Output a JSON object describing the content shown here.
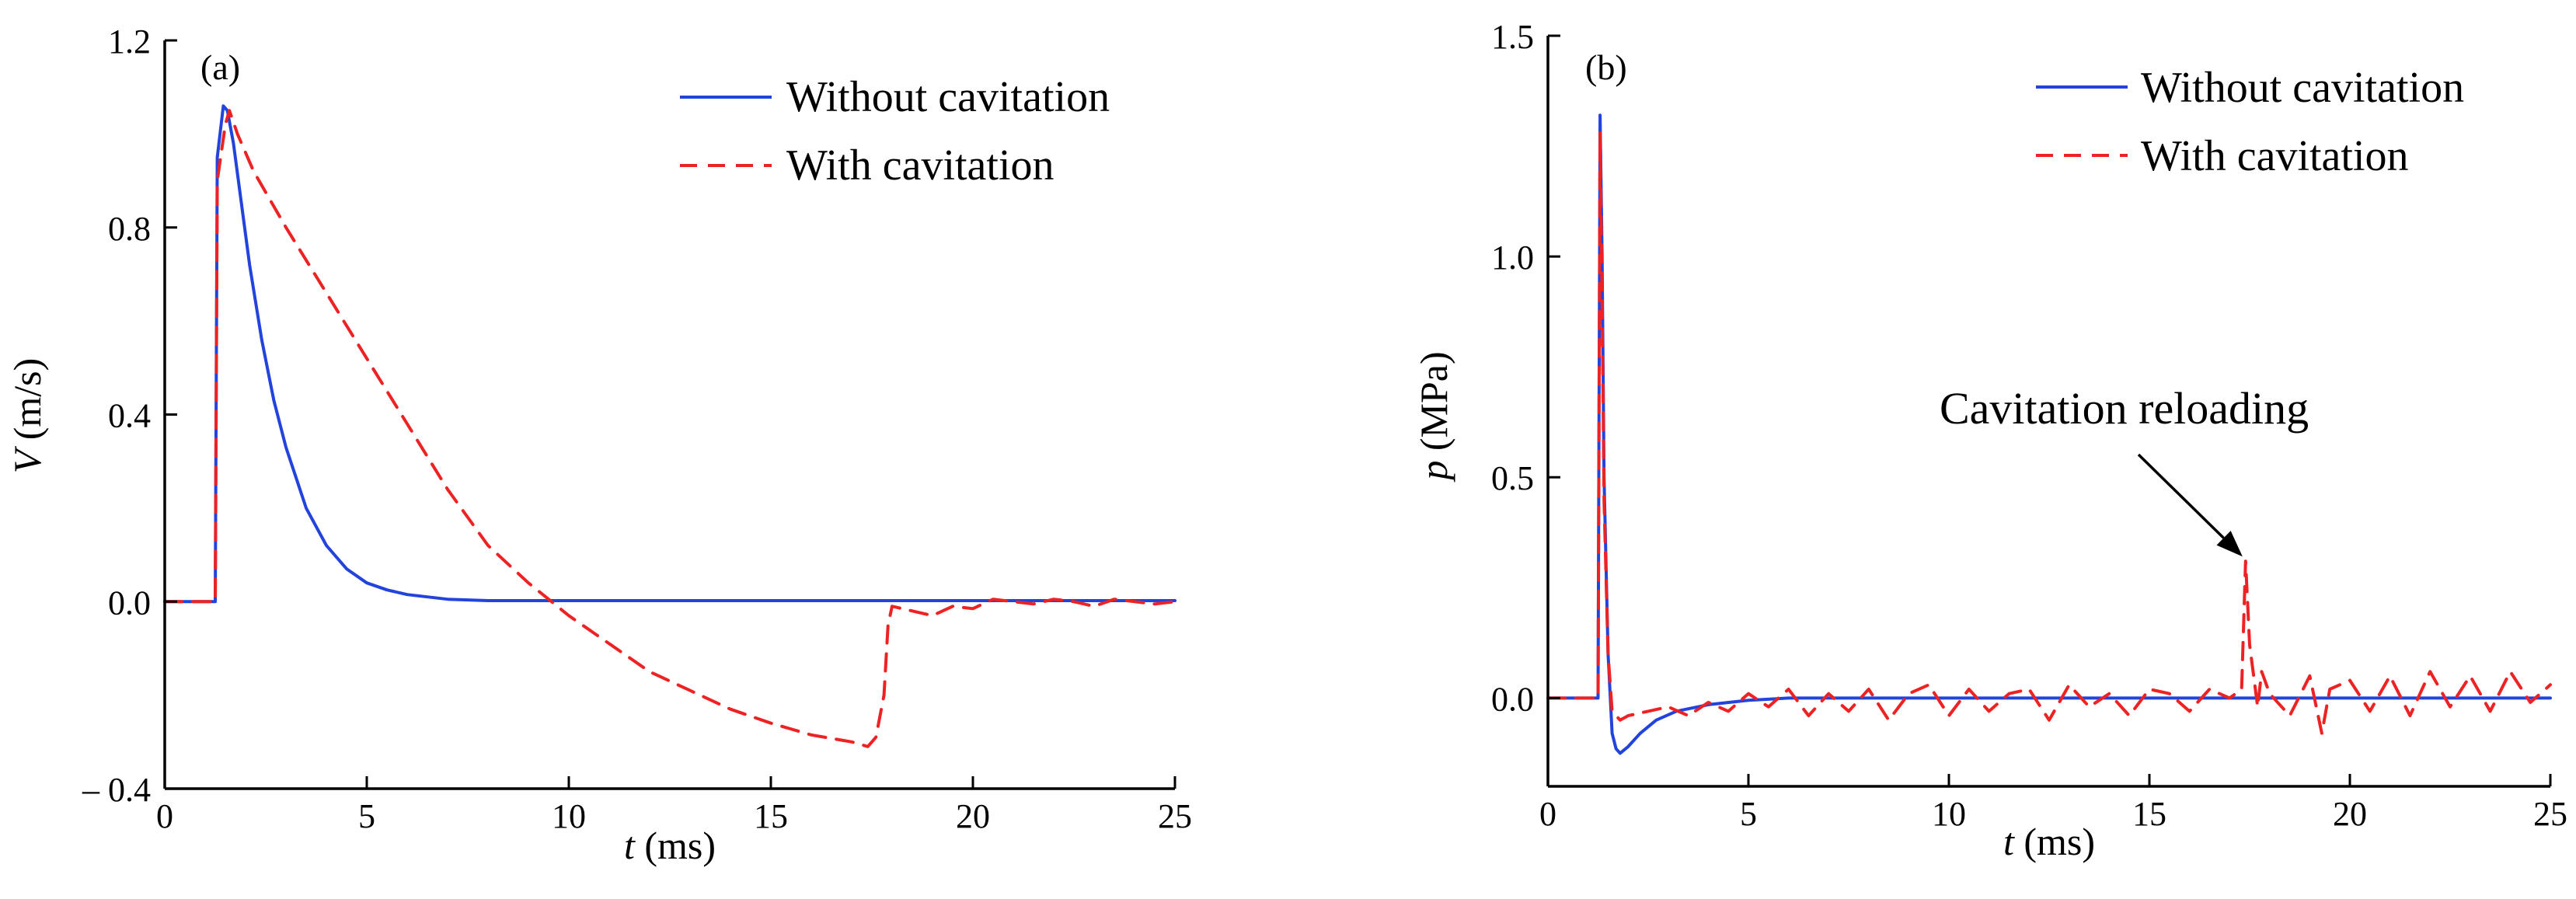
{
  "colors": {
    "without": "#2244dd",
    "with": "#ee2222",
    "axis": "#000000"
  },
  "chart_data": [
    {
      "type": "line",
      "panel_label": "(a)",
      "xlabel_var": "t",
      "xlabel_unit": "(ms)",
      "ylabel_var": "V",
      "ylabel_unit": "(m/s)",
      "xlim": [
        0,
        25
      ],
      "ylim": [
        -0.4,
        1.2
      ],
      "xticks": [
        0,
        5,
        10,
        15,
        20,
        25
      ],
      "xtick_labels": [
        "0",
        "5",
        "10",
        "15",
        "20",
        "25"
      ],
      "yticks": [
        -0.4,
        0.0,
        0.4,
        0.8,
        1.2
      ],
      "ytick_labels": [
        "– 0.4",
        "0.0",
        "0.4",
        "0.8",
        "1.2"
      ],
      "legend_position": "top-right",
      "series": [
        {
          "name": "Without cavitation",
          "style": "solid",
          "color": "#2244dd",
          "x": [
            0,
            1.25,
            1.3,
            1.45,
            1.55,
            1.7,
            1.9,
            2.1,
            2.4,
            2.7,
            3.0,
            3.5,
            4.0,
            4.5,
            5.0,
            5.5,
            6.0,
            7.0,
            8.0,
            10,
            15,
            20,
            25
          ],
          "y": [
            0.0,
            0.0,
            0.95,
            1.06,
            1.05,
            0.98,
            0.85,
            0.72,
            0.56,
            0.43,
            0.33,
            0.2,
            0.12,
            0.07,
            0.04,
            0.025,
            0.015,
            0.005,
            0.002,
            0.002,
            0.002,
            0.002,
            0.002
          ]
        },
        {
          "name": "With cavitation",
          "style": "dashed",
          "color": "#ee2222",
          "x": [
            0,
            1.25,
            1.3,
            1.5,
            1.6,
            1.8,
            2.2,
            3.0,
            4.0,
            5.0,
            6.0,
            7.0,
            8.0,
            9.0,
            9.5,
            10,
            11,
            12,
            13,
            14,
            15,
            16,
            17,
            17.4,
            17.6,
            17.8,
            17.9,
            18.0,
            18.5,
            19.0,
            19.5,
            20.0,
            20.5,
            21.0,
            21.5,
            22.0,
            22.5,
            23.0,
            23.5,
            24.0,
            24.5,
            25.0
          ],
          "y": [
            0.0,
            0.0,
            0.9,
            1.02,
            1.05,
            1.0,
            0.92,
            0.8,
            0.66,
            0.52,
            0.38,
            0.24,
            0.12,
            0.04,
            0.005,
            -0.03,
            -0.09,
            -0.15,
            -0.19,
            -0.23,
            -0.26,
            -0.285,
            -0.3,
            -0.31,
            -0.29,
            -0.2,
            -0.05,
            -0.01,
            -0.02,
            -0.03,
            -0.01,
            -0.015,
            0.005,
            0.0,
            -0.005,
            0.005,
            0.0,
            -0.01,
            0.005,
            0.0,
            -0.005,
            0.0
          ]
        }
      ]
    },
    {
      "type": "line",
      "panel_label": "(b)",
      "xlabel_var": "t",
      "xlabel_unit": "(ms)",
      "ylabel_var": "p",
      "ylabel_unit": "(MPa)",
      "xlim": [
        0,
        25
      ],
      "ylim": [
        -0.2,
        1.5
      ],
      "xticks": [
        0,
        5,
        10,
        15,
        20,
        25
      ],
      "xtick_labels": [
        "0",
        "5",
        "10",
        "15",
        "20",
        "25"
      ],
      "yticks": [
        0.0,
        0.5,
        1.0,
        1.5
      ],
      "ytick_labels": [
        "0.0",
        "0.5",
        "1.0",
        "1.5"
      ],
      "legend_position": "top-right",
      "annotation": {
        "text": "Cavitation reloading",
        "target_x": 17.4,
        "target_y": 0.31
      },
      "series": [
        {
          "name": "Without cavitation",
          "style": "solid",
          "color": "#2244dd",
          "x": [
            0,
            1.25,
            1.3,
            1.35,
            1.4,
            1.5,
            1.6,
            1.7,
            1.8,
            2.0,
            2.3,
            2.7,
            3.2,
            4.0,
            5.0,
            6.0,
            8.0,
            10,
            15,
            20,
            25
          ],
          "y": [
            0.0,
            0.0,
            1.32,
            1.0,
            0.5,
            0.1,
            -0.08,
            -0.115,
            -0.125,
            -0.11,
            -0.08,
            -0.05,
            -0.03,
            -0.015,
            -0.005,
            0.0,
            0.0,
            0.0,
            0.0,
            0.0,
            0.0
          ]
        },
        {
          "name": "With cavitation",
          "style": "dashed",
          "color": "#ee2222",
          "x": [
            0,
            1.25,
            1.3,
            1.35,
            1.4,
            1.5,
            1.6,
            1.8,
            2.0,
            2.5,
            3.0,
            3.5,
            4.0,
            4.5,
            5.0,
            5.5,
            6.0,
            6.5,
            7.0,
            7.5,
            8.0,
            8.5,
            9.0,
            9.5,
            10.0,
            10.5,
            11.0,
            11.5,
            12.0,
            12.5,
            13.0,
            13.5,
            14.0,
            14.5,
            15.0,
            15.5,
            16.0,
            16.5,
            17.0,
            17.3,
            17.4,
            17.5,
            17.6,
            17.7,
            17.8,
            18.0,
            18.5,
            19.0,
            19.3,
            19.5,
            20.0,
            20.5,
            21.0,
            21.5,
            22.0,
            22.5,
            23.0,
            23.5,
            24.0,
            24.5,
            25.0
          ],
          "y": [
            0.0,
            0.0,
            1.28,
            0.9,
            0.45,
            0.1,
            -0.03,
            -0.05,
            -0.04,
            -0.03,
            -0.02,
            -0.04,
            -0.01,
            -0.03,
            0.01,
            -0.02,
            0.02,
            -0.04,
            0.01,
            -0.03,
            0.02,
            -0.05,
            0.01,
            0.03,
            -0.04,
            0.02,
            -0.03,
            0.01,
            0.02,
            -0.05,
            0.03,
            -0.02,
            0.01,
            -0.04,
            0.02,
            0.01,
            -0.03,
            0.02,
            0.0,
            0.02,
            0.31,
            0.12,
            0.05,
            -0.02,
            0.06,
            0.01,
            -0.04,
            0.05,
            -0.08,
            0.02,
            0.04,
            -0.03,
            0.05,
            -0.04,
            0.06,
            -0.02,
            0.05,
            -0.03,
            0.06,
            -0.01,
            0.03
          ]
        }
      ]
    }
  ]
}
